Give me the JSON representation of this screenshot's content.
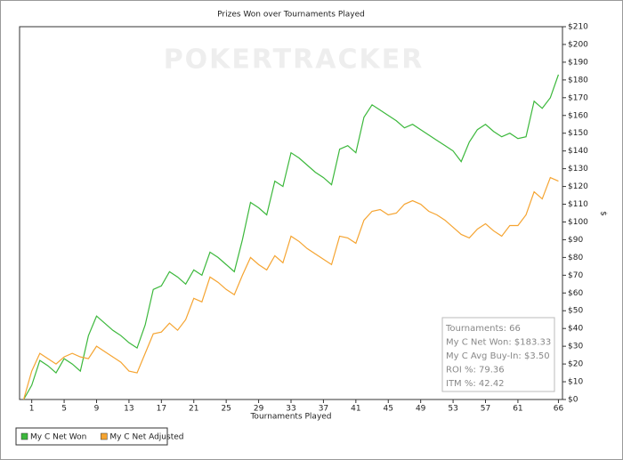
{
  "chart_data": {
    "type": "line",
    "title": "Prizes Won over Tournaments Played",
    "watermark": "POKERTRACKER",
    "x_label": "Tournaments Played",
    "y_label": "$",
    "x": [
      0,
      1,
      2,
      3,
      4,
      5,
      6,
      7,
      8,
      9,
      10,
      11,
      12,
      13,
      14,
      15,
      16,
      17,
      18,
      19,
      20,
      21,
      22,
      23,
      24,
      25,
      26,
      27,
      28,
      29,
      30,
      31,
      32,
      33,
      34,
      35,
      36,
      37,
      38,
      39,
      40,
      41,
      42,
      43,
      44,
      45,
      46,
      47,
      48,
      49,
      50,
      51,
      52,
      53,
      54,
      55,
      56,
      57,
      58,
      59,
      60,
      61,
      62,
      63,
      64,
      65,
      66
    ],
    "series": [
      {
        "name": "My C Net Won",
        "color": "#3cb83c",
        "values": [
          0,
          8,
          22,
          19,
          15,
          23,
          20,
          16,
          36,
          47,
          43,
          39,
          36,
          32,
          29,
          42,
          62,
          64,
          72,
          69,
          65,
          73,
          70,
          83,
          80,
          76,
          72,
          90,
          111,
          108,
          104,
          123,
          120,
          139,
          136,
          132,
          128,
          125,
          121,
          141,
          143,
          139,
          159,
          166,
          163,
          160,
          157,
          153,
          155,
          152,
          149,
          146,
          143,
          140,
          134,
          145,
          152,
          155,
          151,
          148,
          150,
          147,
          148,
          168,
          164,
          170,
          183
        ]
      },
      {
        "name": "My C Net Adjusted",
        "color": "#f5a431",
        "values": [
          0,
          16,
          26,
          23,
          20,
          24,
          26,
          24,
          23,
          30,
          27,
          24,
          21,
          16,
          15,
          26,
          37,
          38,
          43,
          39,
          45,
          57,
          55,
          69,
          66,
          62,
          59,
          70,
          80,
          76,
          73,
          81,
          77,
          92,
          89,
          85,
          82,
          79,
          76,
          92,
          91,
          88,
          101,
          106,
          107,
          104,
          105,
          110,
          112,
          110,
          106,
          104,
          101,
          97,
          93,
          91,
          96,
          99,
          95,
          92,
          98,
          98,
          104,
          117,
          113,
          125,
          123
        ]
      }
    ],
    "xlim": [
      -0.5,
      66.5
    ],
    "xticks": [
      1,
      5,
      9,
      13,
      17,
      21,
      25,
      29,
      33,
      37,
      41,
      45,
      49,
      53,
      57,
      61,
      66
    ],
    "ylim": [
      0,
      210
    ],
    "yticks": [
      {
        "value": 0,
        "label": "$0"
      },
      {
        "value": 10,
        "label": "$10"
      },
      {
        "value": 20,
        "label": "$20"
      },
      {
        "value": 30,
        "label": "$30"
      },
      {
        "value": 40,
        "label": "$40"
      },
      {
        "value": 50,
        "label": "$50"
      },
      {
        "value": 60,
        "label": "$60"
      },
      {
        "value": 70,
        "label": "$70"
      },
      {
        "value": 80,
        "label": "$80"
      },
      {
        "value": 90,
        "label": "$90"
      },
      {
        "value": 100,
        "label": "$100"
      },
      {
        "value": 110,
        "label": "$110"
      },
      {
        "value": 120,
        "label": "$120"
      },
      {
        "value": 130,
        "label": "$130"
      },
      {
        "value": 140,
        "label": "$140"
      },
      {
        "value": 150,
        "label": "$150"
      },
      {
        "value": 160,
        "label": "$160"
      },
      {
        "value": 170,
        "label": "$170"
      },
      {
        "value": 180,
        "label": "$180"
      },
      {
        "value": 190,
        "label": "$190"
      },
      {
        "value": 200,
        "label": "$200"
      },
      {
        "value": 210,
        "label": "$210"
      }
    ],
    "info": [
      "Tournaments: 66",
      "My C Net Won: $183.33",
      "My C Avg Buy-In: $3.50",
      "ROI %: 79.36",
      "ITM %: 42.42"
    ]
  }
}
